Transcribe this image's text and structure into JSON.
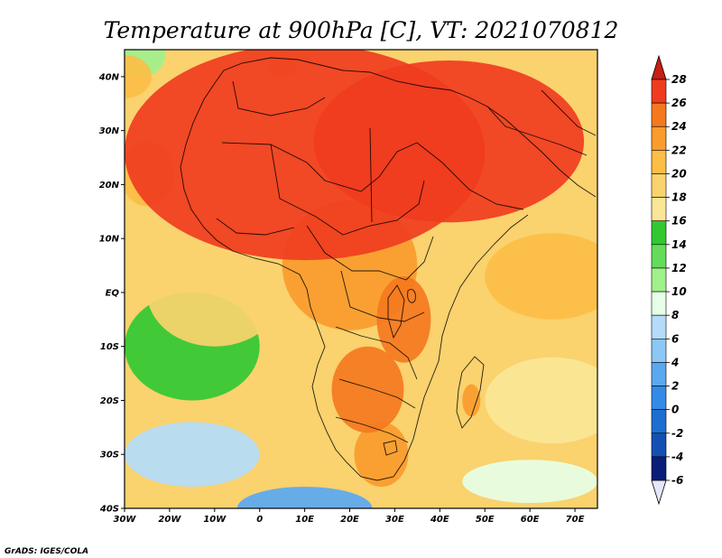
{
  "title": "Temperature at 900hPa [C], VT: 2021070812",
  "credit": "GrADS: IGES/COLA",
  "map": {
    "lon_range": [
      -30,
      75
    ],
    "lat_range": [
      -40,
      45
    ],
    "lon_ticks": [
      {
        "value": -30,
        "label": "30W"
      },
      {
        "value": -20,
        "label": "20W"
      },
      {
        "value": -10,
        "label": "10W"
      },
      {
        "value": 0,
        "label": "0"
      },
      {
        "value": 10,
        "label": "10E"
      },
      {
        "value": 20,
        "label": "20E"
      },
      {
        "value": 30,
        "label": "30E"
      },
      {
        "value": 40,
        "label": "40E"
      },
      {
        "value": 50,
        "label": "50E"
      },
      {
        "value": 60,
        "label": "60E"
      },
      {
        "value": 70,
        "label": "70E"
      }
    ],
    "lat_ticks": [
      {
        "value": 40,
        "label": "40N"
      },
      {
        "value": 30,
        "label": "30N"
      },
      {
        "value": 20,
        "label": "20N"
      },
      {
        "value": 10,
        "label": "10N"
      },
      {
        "value": 0,
        "label": "EQ"
      },
      {
        "value": -10,
        "label": "10S"
      },
      {
        "value": -20,
        "label": "20S"
      },
      {
        "value": -30,
        "label": "30S"
      },
      {
        "value": -40,
        "label": "40S"
      }
    ]
  },
  "colorbar": {
    "levels": [
      "28",
      "26",
      "24",
      "22",
      "20",
      "18",
      "16",
      "14",
      "12",
      "10",
      "8",
      "6",
      "4",
      "2",
      "0",
      "-2",
      "-4",
      "-6"
    ],
    "colors": [
      "#f03c1e",
      "#f5781e",
      "#fa9b2d",
      "#fcbe46",
      "#fad26e",
      "#fae696",
      "#32c832",
      "#64dc5a",
      "#a0f08c",
      "#e6ffe6",
      "#b4dcfa",
      "#8cc8f5",
      "#5aa8f0",
      "#328ce6",
      "#1e6ed2",
      "#1450b4",
      "#0a1e78"
    ],
    "top_color": "#c81e14",
    "bottom_color": "#e6e6fa"
  },
  "field_zones": [
    {
      "lon": -30,
      "lat": 40,
      "range": [
        60,
        40
      ],
      "temp": 20
    },
    {
      "lon": -26,
      "lat": 44,
      "range": [
        50,
        40
      ],
      "temp": 10
    },
    {
      "lon": 10,
      "lat": 26,
      "range": [
        400,
        200
      ],
      "temp": 27
    },
    {
      "lon": 42,
      "lat": 28,
      "range": [
        300,
        150
      ],
      "temp": 27
    },
    {
      "lon": 20,
      "lat": 5,
      "range": [
        150,
        120
      ],
      "temp": 23
    },
    {
      "lon": 32,
      "lat": -5,
      "range": [
        60,
        80
      ],
      "temp": 25
    },
    {
      "lon": 24,
      "lat": -18,
      "range": [
        80,
        80
      ],
      "temp": 24
    },
    {
      "lon": 27,
      "lat": -30,
      "range": [
        60,
        60
      ],
      "temp": 23
    },
    {
      "lon": 47,
      "lat": -20,
      "range": [
        20,
        30
      ],
      "temp": 22
    },
    {
      "lon": -10,
      "lat": 0,
      "range": [
        150,
        100
      ],
      "temp": 19
    },
    {
      "lon": -15,
      "lat": -10,
      "range": [
        150,
        100
      ],
      "temp": 15
    },
    {
      "lon": -15,
      "lat": -30,
      "range": [
        150,
        60
      ],
      "temp": 6
    },
    {
      "lon": 10,
      "lat": -40,
      "range": [
        150,
        40
      ],
      "temp": 2
    },
    {
      "lon": 65,
      "lat": 3,
      "range": [
        150,
        80
      ],
      "temp": 21
    },
    {
      "lon": 65,
      "lat": -20,
      "range": [
        150,
        80
      ],
      "temp": 17
    },
    {
      "lon": 60,
      "lat": -35,
      "range": [
        150,
        40
      ],
      "temp": 8
    },
    {
      "lon": -25,
      "lat": 22,
      "range": [
        60,
        60
      ],
      "temp": 21
    },
    {
      "lon": 5,
      "lat": 42,
      "range": [
        30,
        20
      ],
      "temp": 20
    }
  ]
}
